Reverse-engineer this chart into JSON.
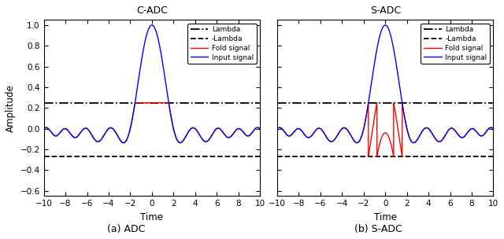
{
  "title_left": "C-ADC",
  "title_right": "S-ADC",
  "caption_left": "(a) ADC",
  "caption_right": "(b) S-ADC",
  "xlabel": "Time",
  "ylabel": "Amplitude",
  "xlim": [
    -10,
    10
  ],
  "ylim": [
    -0.65,
    1.05
  ],
  "yticks": [
    -0.6,
    -0.4,
    -0.2,
    0,
    0.2,
    0.4,
    0.6,
    0.8,
    1.0
  ],
  "xticks": [
    -10,
    -8,
    -6,
    -4,
    -2,
    0,
    2,
    4,
    6,
    8,
    10
  ],
  "lambda": 0.25,
  "lambda_neg": -0.27,
  "legend_labels": [
    "Lambda",
    "-Lambda",
    "Fold signal",
    "Input signal"
  ],
  "line_color_input": "#0000FF",
  "line_color_fold": "#FF0000",
  "line_color_lambda": "#000000",
  "background_color": "#ffffff",
  "figsize": [
    6.4,
    3.04
  ],
  "dpi": 100
}
